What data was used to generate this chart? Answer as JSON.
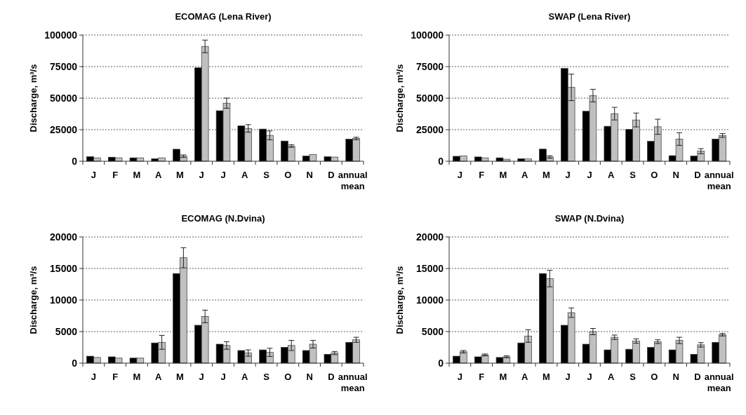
{
  "chart_data": [
    {
      "type": "bar",
      "title": "ECOMAG (Lena River)",
      "ylabel": "Discharge, m³/s",
      "categories": [
        "J",
        "F",
        "M",
        "A",
        "M",
        "J",
        "J",
        "A",
        "S",
        "O",
        "N",
        "D",
        "annual mean"
      ],
      "ylim": [
        0,
        100000
      ],
      "yticks": [
        0,
        25000,
        50000,
        75000,
        100000
      ],
      "grid": "y",
      "series": [
        {
          "color": "#000000",
          "values": [
            3600,
            3200,
            2700,
            2000,
            9500,
            74000,
            40000,
            28000,
            25500,
            16000,
            4100,
            3600,
            17500
          ]
        },
        {
          "color": "#c0c0c0",
          "values": [
            2700,
            2700,
            2700,
            2700,
            4000,
            91000,
            46000,
            26000,
            20500,
            12000,
            5400,
            3300,
            18000
          ],
          "errors": [
            null,
            null,
            null,
            null,
            1000,
            5000,
            4000,
            3000,
            3500,
            1000,
            null,
            null,
            1000
          ]
        }
      ]
    },
    {
      "type": "bar",
      "title": "SWAP (Lena River)",
      "ylabel": "Discharge, m³/s",
      "categories": [
        "J",
        "F",
        "M",
        "A",
        "M",
        "J",
        "J",
        "A",
        "S",
        "O",
        "N",
        "D",
        "annual mean"
      ],
      "ylim": [
        0,
        100000
      ],
      "yticks": [
        0,
        25000,
        50000,
        75000,
        100000
      ],
      "grid": "y",
      "series": [
        {
          "color": "#000000",
          "values": [
            3900,
            3400,
            2700,
            2000,
            9600,
            73500,
            39600,
            27700,
            25200,
            15800,
            4400,
            4100,
            17600
          ]
        },
        {
          "color": "#c0c0c0",
          "values": [
            4300,
            2700,
            1600,
            1800,
            3400,
            58500,
            52000,
            37700,
            32700,
            27300,
            17600,
            8000,
            20400
          ],
          "errors": [
            null,
            null,
            null,
            null,
            1000,
            10500,
            5000,
            5000,
            5500,
            6000,
            5000,
            2000,
            1500
          ]
        }
      ]
    },
    {
      "type": "bar",
      "title": "ECOMAG (N.Dvina)",
      "ylabel": "Discharge, m³/s",
      "categories": [
        "J",
        "F",
        "M",
        "A",
        "M",
        "J",
        "J",
        "A",
        "S",
        "O",
        "N",
        "D",
        "annual mean"
      ],
      "ylim": [
        0,
        20000
      ],
      "yticks": [
        0,
        5000,
        10000,
        15000,
        20000
      ],
      "grid": "y",
      "series": [
        {
          "color": "#000000",
          "values": [
            1100,
            1000,
            800,
            3200,
            14200,
            6000,
            3000,
            2000,
            2100,
            2500,
            2000,
            1400,
            3300
          ]
        },
        {
          "color": "#c0c0c0",
          "values": [
            900,
            800,
            800,
            3300,
            16700,
            7400,
            2800,
            1600,
            1700,
            2800,
            3000,
            1600,
            3700
          ],
          "errors": [
            null,
            null,
            null,
            1100,
            1600,
            1000,
            600,
            500,
            650,
            800,
            600,
            250,
            400
          ]
        }
      ]
    },
    {
      "type": "bar",
      "title": "SWAP (N.Dvina)",
      "ylabel": "Discharge, m³/s",
      "categories": [
        "J",
        "F",
        "M",
        "A",
        "M",
        "J",
        "J",
        "A",
        "S",
        "O",
        "N",
        "D",
        "annual mean"
      ],
      "ylim": [
        0,
        20000
      ],
      "yticks": [
        0,
        5000,
        10000,
        15000,
        20000
      ],
      "grid": "y",
      "series": [
        {
          "color": "#000000",
          "values": [
            1100,
            1000,
            900,
            3200,
            14200,
            6000,
            3000,
            2100,
            2200,
            2500,
            2100,
            1400,
            3300
          ]
        },
        {
          "color": "#c0c0c0",
          "values": [
            1800,
            1300,
            1000,
            4300,
            13400,
            8000,
            5000,
            4100,
            3500,
            3400,
            3600,
            2900,
            4500
          ],
          "errors": [
            200,
            150,
            150,
            1000,
            1300,
            750,
            500,
            350,
            350,
            300,
            500,
            350,
            200
          ]
        }
      ]
    }
  ]
}
